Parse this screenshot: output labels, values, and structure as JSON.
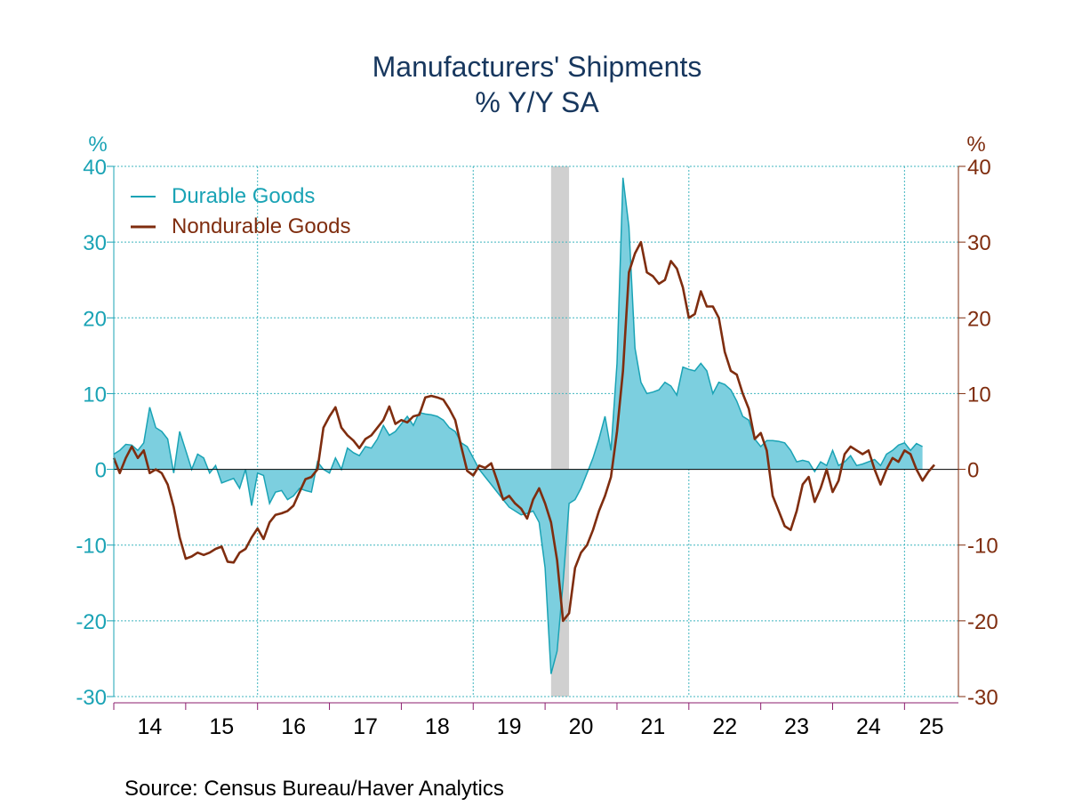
{
  "chart_data": {
    "type": "area+line",
    "title": "Manufacturers' Shipments",
    "subtitle": "% Y/Y   SA",
    "source": "Source: Census Bureau/Haver Analytics",
    "y_unit_left": "%",
    "y_unit_right": "%",
    "ylim": [
      -30,
      40
    ],
    "yticks": [
      40,
      30,
      20,
      10,
      0,
      -10,
      -20,
      -30
    ],
    "xlim": [
      2014.0,
      2025.75
    ],
    "xtick_labels": [
      "14",
      "15",
      "16",
      "17",
      "18",
      "19",
      "20",
      "21",
      "22",
      "23",
      "24",
      "25"
    ],
    "grid": true,
    "legend_position": "top-left",
    "recession_shading": {
      "start": "2020-02",
      "end": "2020-04",
      "color": "#d0d0d0"
    },
    "colors": {
      "durable_fill": "#7ccfdf",
      "durable_line": "#1aa3b5",
      "nondurable": "#7f2d0f",
      "grid": "#3fb5bf",
      "axis_left": "#1aa3b5",
      "axis_right": "#7f2d0f",
      "x_axis": "#8b1e6e",
      "title": "#17375e"
    },
    "series": [
      {
        "name": "Durable Goods",
        "style": "area",
        "start": "2014-01",
        "frequency": "monthly",
        "values": [
          2.0,
          2.5,
          3.3,
          3.2,
          2.5,
          3.5,
          8.2,
          5.5,
          5.0,
          4.0,
          -0.5,
          5.0,
          2.5,
          0.0,
          2.0,
          1.5,
          -0.5,
          0.5,
          -1.8,
          -1.5,
          -1.2,
          -2.5,
          0.0,
          -4.8,
          -0.5,
          -0.8,
          -4.5,
          -3.0,
          -2.8,
          -4.0,
          -3.5,
          -2.5,
          -2.8,
          -3.0,
          1.0,
          0.0,
          -0.5,
          1.5,
          0.0,
          2.8,
          2.2,
          1.8,
          3.0,
          2.8,
          4.0,
          5.8,
          4.5,
          5.0,
          6.0,
          7.0,
          5.8,
          7.5,
          7.3,
          7.2,
          7.0,
          6.5,
          5.5,
          5.0,
          3.5,
          3.0,
          1.5,
          0.0,
          -1.0,
          -2.0,
          -3.0,
          -4.0,
          -5.0,
          -5.5,
          -6.0,
          -5.8,
          -5.5,
          -7.0,
          -13.0,
          -27.0,
          -24.0,
          -15.0,
          -4.5,
          -4.0,
          -2.5,
          -0.5,
          1.5,
          4.0,
          7.0,
          2.5,
          14.0,
          38.5,
          32.0,
          16.0,
          11.5,
          10.0,
          10.2,
          10.5,
          11.5,
          11.0,
          9.8,
          13.5,
          13.2,
          13.0,
          14.0,
          13.0,
          10.0,
          11.5,
          11.2,
          10.5,
          9.0,
          7.0,
          6.5,
          4.0,
          3.0,
          3.8,
          3.8,
          3.7,
          3.5,
          2.5,
          1.0,
          1.2,
          1.0,
          -0.3,
          1.0,
          0.5,
          2.5,
          0.5,
          1.0,
          1.8,
          0.5,
          0.7,
          1.0,
          1.3,
          0.5,
          2.0,
          2.5,
          3.2,
          3.5,
          2.5,
          3.4,
          3.0
        ]
      },
      {
        "name": "Nondurable Goods",
        "style": "line",
        "start": "2014-01",
        "frequency": "monthly",
        "values": [
          1.5,
          -0.5,
          1.5,
          3.0,
          1.5,
          2.5,
          -0.5,
          0.0,
          -0.5,
          -2.0,
          -5.0,
          -9.0,
          -11.8,
          -11.5,
          -11.0,
          -11.3,
          -11.0,
          -10.5,
          -10.2,
          -12.2,
          -12.3,
          -11.0,
          -10.5,
          -9.0,
          -7.8,
          -9.2,
          -7.0,
          -6.0,
          -5.8,
          -5.5,
          -4.8,
          -3.0,
          -1.3,
          -1.0,
          0.0,
          5.5,
          7.0,
          8.2,
          5.5,
          4.5,
          3.8,
          2.8,
          4.0,
          4.5,
          5.5,
          6.5,
          8.3,
          6.0,
          6.5,
          6.2,
          7.0,
          7.2,
          9.5,
          9.7,
          9.5,
          9.2,
          8.0,
          6.5,
          3.0,
          -0.2,
          -0.8,
          0.5,
          0.2,
          0.8,
          -1.5,
          -4.0,
          -3.5,
          -4.5,
          -5.2,
          -6.5,
          -4.0,
          -2.5,
          -4.5,
          -7.0,
          -12.0,
          -20.0,
          -19.0,
          -13.0,
          -11.0,
          -10.0,
          -8.0,
          -5.5,
          -3.5,
          -1.0,
          5.0,
          13.0,
          26.0,
          28.5,
          30.0,
          26.0,
          25.5,
          24.5,
          25.0,
          27.5,
          26.5,
          24.0,
          20.0,
          20.5,
          23.5,
          21.5,
          21.5,
          20.0,
          15.5,
          13.0,
          12.5,
          10.0,
          8.0,
          4.0,
          4.8,
          2.5,
          -3.5,
          -5.5,
          -7.5,
          -8.0,
          -5.5,
          -2.0,
          -1.0,
          -4.3,
          -2.5,
          0.0,
          -3.0,
          -1.5,
          2.0,
          3.0,
          2.5,
          2.0,
          2.5,
          0.0,
          -2.0,
          0.0,
          1.5,
          1.0,
          2.5,
          2.0,
          0.0,
          -1.5,
          -0.3,
          0.6
        ]
      }
    ]
  }
}
